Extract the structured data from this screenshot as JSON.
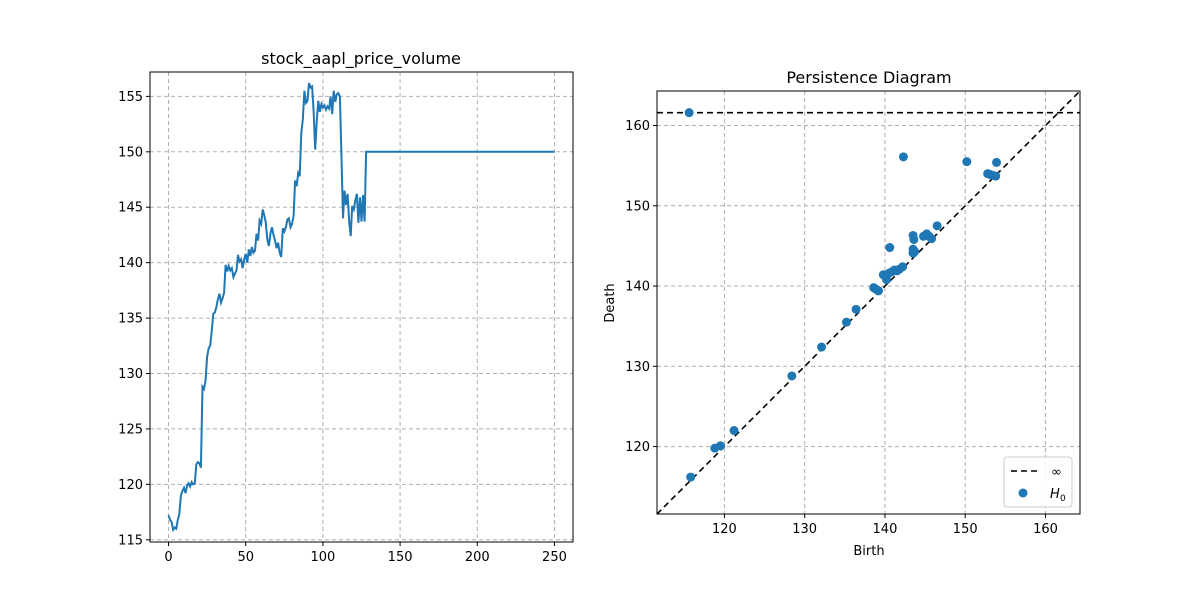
{
  "chart_data": [
    {
      "type": "line",
      "title": "stock_aapl_price_volume",
      "xlabel": "",
      "ylabel": "",
      "xlim": [
        -12,
        262
      ],
      "ylim": [
        114.8,
        157.2
      ],
      "xticks": [
        0,
        50,
        100,
        150,
        200,
        250
      ],
      "yticks": [
        115,
        120,
        125,
        130,
        135,
        140,
        145,
        150,
        155
      ],
      "grid": true,
      "color": "#1f77b4",
      "x": [
        0,
        1,
        2,
        3,
        4,
        5,
        6,
        7,
        8,
        9,
        10,
        11,
        12,
        13,
        14,
        15,
        16,
        17,
        18,
        19,
        20,
        21,
        22,
        23,
        24,
        25,
        26,
        27,
        28,
        29,
        30,
        31,
        32,
        33,
        34,
        35,
        36,
        37,
        38,
        39,
        40,
        41,
        42,
        43,
        44,
        45,
        46,
        47,
        48,
        49,
        50,
        51,
        52,
        53,
        54,
        55,
        56,
        57,
        58,
        59,
        60,
        61,
        62,
        63,
        64,
        65,
        66,
        67,
        68,
        69,
        70,
        71,
        72,
        73,
        74,
        75,
        76,
        77,
        78,
        79,
        80,
        81,
        82,
        83,
        84,
        85,
        86,
        87,
        88,
        89,
        90,
        91,
        92,
        93,
        94,
        95,
        96,
        97,
        98,
        99,
        100,
        101,
        102,
        103,
        104,
        105,
        106,
        107,
        108,
        109,
        110,
        111,
        112,
        113,
        114,
        115,
        116,
        117,
        118,
        119,
        120,
        121,
        122,
        123,
        124,
        125,
        126,
        127,
        128,
        250
      ],
      "y": [
        117.2,
        116.8,
        116.6,
        115.9,
        116.1,
        116.0,
        116.8,
        117.3,
        119.0,
        119.4,
        119.7,
        119.2,
        119.9,
        120.1,
        119.8,
        120.2,
        120.0,
        120.1,
        121.8,
        122.0,
        121.9,
        121.5,
        128.8,
        128.6,
        129.4,
        131.5,
        132.3,
        132.5,
        133.9,
        135.4,
        135.5,
        136.0,
        136.7,
        137.2,
        136.4,
        136.8,
        137.3,
        139.8,
        139.2,
        139.7,
        139.3,
        139.5,
        138.7,
        139.0,
        139.3,
        140.7,
        140.1,
        140.3,
        139.5,
        140.3,
        140.8,
        140.0,
        141.2,
        140.6,
        141.4,
        140.9,
        141.1,
        142.6,
        142.0,
        143.8,
        143.5,
        144.8,
        144.3,
        143.6,
        142.1,
        141.5,
        142.6,
        143.2,
        142.5,
        142.0,
        141.3,
        141.8,
        140.9,
        140.5,
        143.1,
        142.8,
        143.2,
        143.9,
        144.0,
        143.2,
        143.5,
        144.2,
        147.4,
        146.9,
        148.1,
        147.8,
        151.7,
        152.9,
        155.5,
        154.4,
        154.6,
        156.2,
        155.8,
        155.9,
        153.7,
        150.2,
        152.7,
        154.6,
        153.6,
        154.3,
        154.0,
        154.2,
        153.8,
        154.1,
        153.9,
        155.0,
        153.4,
        155.5,
        154.5,
        155.2,
        155.3,
        155.0,
        149.8,
        144.0,
        146.5,
        145.2,
        146.2,
        143.8,
        142.4,
        145.1,
        144.8,
        145.6,
        146.2,
        143.6,
        145.9,
        143.7,
        146.1,
        143.7,
        150.0,
        150.0
      ]
    },
    {
      "type": "scatter",
      "title": "Persistence Diagram",
      "xlabel": "Birth",
      "ylabel": "Death",
      "xlim": [
        111.6,
        164.3
      ],
      "ylim": [
        111.6,
        164.3
      ],
      "xticks": [
        120,
        130,
        140,
        150,
        160
      ],
      "yticks": [
        120,
        130,
        140,
        150,
        160
      ],
      "grid": true,
      "point_color": "#1f77b4",
      "infinity_value": 161.6,
      "legend": {
        "position": "lower-right",
        "entries": [
          "∞",
          "H",
          "0"
        ]
      },
      "points": [
        [
          115.6,
          161.6
        ],
        [
          115.8,
          116.2
        ],
        [
          118.8,
          119.8
        ],
        [
          119.5,
          120.1
        ],
        [
          121.2,
          122.0
        ],
        [
          128.4,
          128.8
        ],
        [
          132.1,
          132.4
        ],
        [
          135.2,
          135.5
        ],
        [
          136.4,
          137.1
        ],
        [
          138.6,
          139.8
        ],
        [
          138.9,
          139.6
        ],
        [
          139.2,
          139.4
        ],
        [
          139.8,
          141.4
        ],
        [
          140.2,
          140.8
        ],
        [
          140.5,
          141.6
        ],
        [
          140.6,
          144.8
        ],
        [
          140.9,
          141.8
        ],
        [
          141.2,
          142.0
        ],
        [
          141.5,
          141.9
        ],
        [
          141.8,
          142.1
        ],
        [
          142.2,
          142.4
        ],
        [
          142.3,
          156.1
        ],
        [
          143.5,
          146.3
        ],
        [
          143.6,
          145.8
        ],
        [
          143.5,
          144.6
        ],
        [
          143.5,
          144.1
        ],
        [
          143.7,
          144.3
        ],
        [
          144.8,
          146.2
        ],
        [
          145.2,
          146.5
        ],
        [
          145.5,
          146.2
        ],
        [
          145.8,
          145.9
        ],
        [
          146.5,
          147.5
        ],
        [
          150.2,
          155.5
        ],
        [
          152.8,
          154.0
        ],
        [
          153.1,
          153.9
        ],
        [
          153.4,
          153.8
        ],
        [
          153.8,
          153.7
        ],
        [
          153.9,
          155.4
        ]
      ]
    }
  ]
}
